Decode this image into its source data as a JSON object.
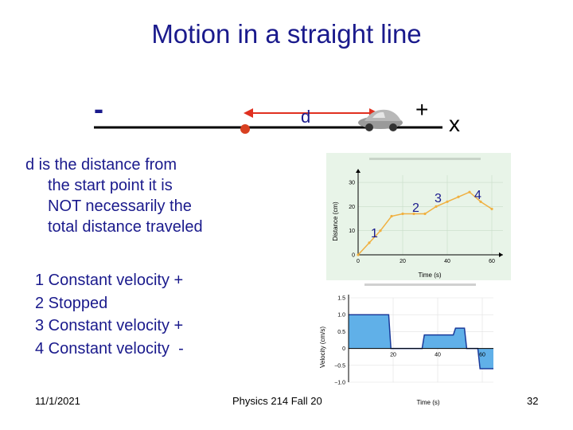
{
  "slide": {
    "title": "Motion in a straight line",
    "minus_sign": "-",
    "plus_sign": "+",
    "x_label": "x",
    "d_label": "d",
    "definition": [
      "d is the distance from",
      "the start point it is",
      "NOT necessarily the",
      "total distance traveled"
    ],
    "legend": [
      "1 Constant velocity +",
      "2 Stopped",
      "3 Constant velocity +",
      "4 Constant velocity  -"
    ],
    "segment_numbers": [
      "1",
      "2",
      "3",
      "4"
    ],
    "footer": {
      "date": "11/1/2021",
      "course": "Physics 214 Fall 20",
      "page": "32"
    }
  },
  "colors": {
    "title": "#1a1a8c",
    "arrow": "#e03020",
    "dot": "#d84020",
    "line_plot": "#f0b040",
    "velocity_fill": "#60b0e8",
    "velocity_line": "#1a3a9a",
    "figure_bg": "#e8f4e8"
  },
  "chart_data": [
    {
      "type": "line",
      "xlabel": "Time (s)",
      "ylabel": "Distance (cm)",
      "x_ticks": [
        "0",
        "20",
        "40",
        "60"
      ],
      "y_ticks": [
        "0",
        "10",
        "20",
        "30"
      ],
      "xlim": [
        0,
        65
      ],
      "ylim": [
        0,
        33
      ],
      "x": [
        0,
        5,
        10,
        15,
        20,
        25,
        30,
        35,
        40,
        45,
        50,
        55,
        60
      ],
      "values": [
        0,
        5,
        10,
        16,
        17,
        17,
        17,
        20,
        22,
        24,
        26,
        22,
        19
      ]
    },
    {
      "type": "area",
      "xlabel": "Time (s)",
      "ylabel": "Velocity (cm/s)",
      "x_ticks": [
        "20",
        "40",
        "60"
      ],
      "y_ticks": [
        "1.5",
        "1.0",
        "0.5",
        "0",
        "−0.5",
        "−1.0"
      ],
      "xlim": [
        0,
        65
      ],
      "ylim": [
        -1.0,
        1.5
      ],
      "x": [
        0,
        18,
        19,
        33,
        34,
        47,
        48,
        52,
        53,
        58,
        59,
        65
      ],
      "values": [
        1.0,
        1.0,
        0.0,
        0.0,
        0.4,
        0.4,
        0.6,
        0.6,
        0.0,
        0.0,
        -0.6,
        -0.6
      ]
    }
  ]
}
